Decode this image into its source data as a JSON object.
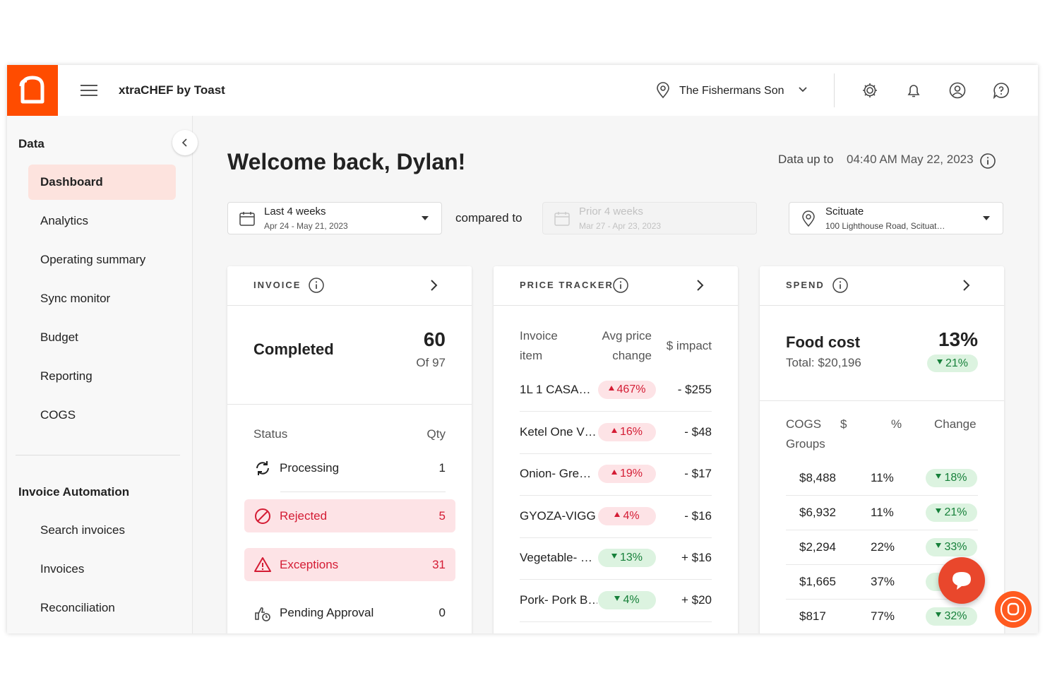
{
  "header": {
    "app_name": "xtraCHEF by Toast",
    "location": "The Fishermans Son"
  },
  "sidebar": {
    "active_index": 0,
    "sections": [
      {
        "title": "Data",
        "items": [
          "Dashboard",
          "Analytics",
          "Operating summary",
          "Sync monitor",
          "Budget",
          "Reporting",
          "COGS"
        ]
      },
      {
        "title": "Invoice Automation",
        "items": [
          "Search invoices",
          "Invoices",
          "Reconciliation"
        ]
      }
    ]
  },
  "welcome": {
    "greeting": "Welcome back, Dylan!",
    "data_up_to_label": "Data up to",
    "data_up_to_value": "04:40 AM May 22, 2023"
  },
  "filters": {
    "period": {
      "label": "Last 4 weeks",
      "range": "Apr 24 - May 21, 2023"
    },
    "compared_to": "compared to",
    "comparison": {
      "label": "Prior 4 weeks",
      "range": "Mar 27 - Apr 23, 2023"
    },
    "location": {
      "name": "Scituate",
      "address": "100 Lighthouse Road, Scituat…"
    }
  },
  "invoice": {
    "title": "INVOICE",
    "summary_label": "Completed",
    "completed": 60,
    "of_total": "Of 97",
    "columns": [
      "Status",
      "Qty"
    ],
    "rows": [
      {
        "status": "Processing",
        "qty": 1,
        "highlight": false
      },
      {
        "status": "Rejected",
        "qty": 5,
        "highlight": true
      },
      {
        "status": "Exceptions",
        "qty": 31,
        "highlight": true
      },
      {
        "status": "Pending Approval",
        "qty": 0,
        "highlight": false
      }
    ]
  },
  "price_tracker": {
    "title": "PRICE TRACKER",
    "columns": [
      "Invoice item",
      "Avg price change",
      "$ impact"
    ],
    "rows": [
      {
        "item": "1L 1 CASA…",
        "change": "467%",
        "direction": "up",
        "impact": "- $255"
      },
      {
        "item": "Ketel One V…",
        "change": "16%",
        "direction": "up",
        "impact": "- $48"
      },
      {
        "item": "Onion- Gre…",
        "change": "19%",
        "direction": "up",
        "impact": "- $17"
      },
      {
        "item": "GYOZA-VIGG…",
        "change": "4%",
        "direction": "up",
        "impact": "- $16"
      },
      {
        "item": "Vegetable- …",
        "change": "13%",
        "direction": "down",
        "impact": "+ $16"
      },
      {
        "item": "Pork- Pork B…",
        "change": "4%",
        "direction": "down",
        "impact": "+ $20"
      }
    ]
  },
  "spend": {
    "title": "SPEND",
    "summary_label": "Food cost",
    "total": "Total: $20,196",
    "share": "13%",
    "change": "21%",
    "direction": "down",
    "columns": [
      "COGS Groups",
      "$",
      "%",
      "Change"
    ],
    "rows": [
      {
        "amount": "$8,488",
        "share": "11%",
        "change": "18%",
        "direction": "down"
      },
      {
        "amount": "$6,932",
        "share": "11%",
        "change": "21%",
        "direction": "down"
      },
      {
        "amount": "$2,294",
        "share": "22%",
        "change": "33%",
        "direction": "down"
      },
      {
        "amount": "$1,665",
        "share": "37%",
        "direction": "down"
      },
      {
        "amount": "$817",
        "share": "77%",
        "change": "32%",
        "direction": "down"
      }
    ]
  }
}
